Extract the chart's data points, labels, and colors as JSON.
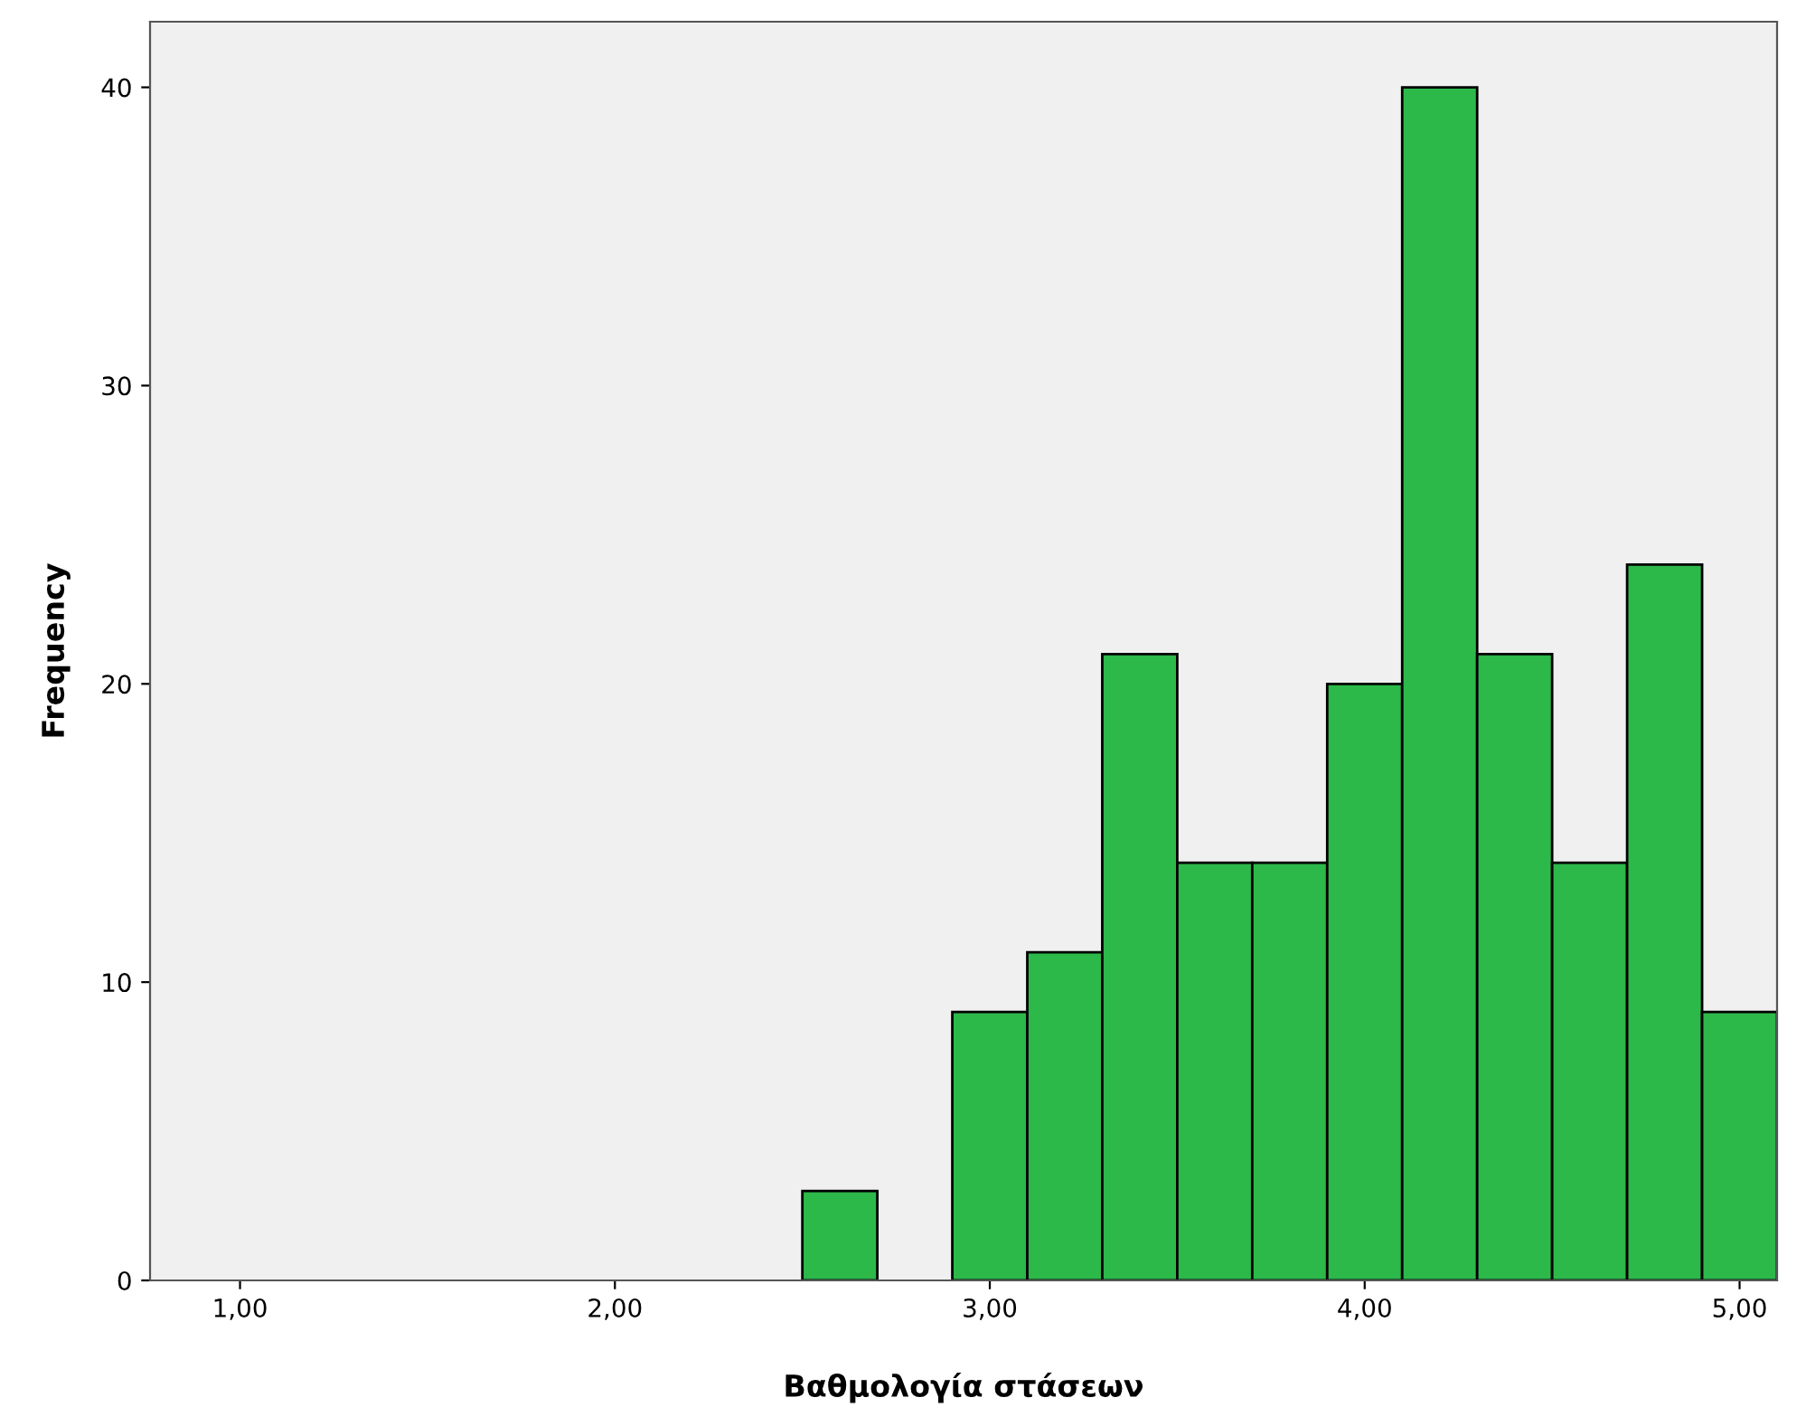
{
  "chart_data": {
    "type": "histogram",
    "xlabel": "Βαθμολογία στάσεων",
    "ylabel": "Frequency",
    "bins": [
      2.5,
      2.7,
      2.9,
      3.1,
      3.3,
      3.5,
      3.7,
      3.9,
      4.1,
      4.3,
      4.5,
      4.7,
      4.9,
      5.1
    ],
    "values": [
      3,
      0,
      9,
      11,
      21,
      14,
      14,
      20,
      40,
      21,
      14,
      24,
      9
    ],
    "color": "#2db84a",
    "xlim": [
      0.76,
      5.1
    ],
    "xticks": [
      {
        "value": 1,
        "label": "1,00"
      },
      {
        "value": 2,
        "label": "2,00"
      },
      {
        "value": 3,
        "label": "3,00"
      },
      {
        "value": 4,
        "label": "4,00"
      },
      {
        "value": 5,
        "label": "5,00"
      }
    ],
    "ylim": [
      0,
      42.2
    ],
    "yticks": [
      0,
      10,
      20,
      30,
      40
    ],
    "grid": false
  }
}
